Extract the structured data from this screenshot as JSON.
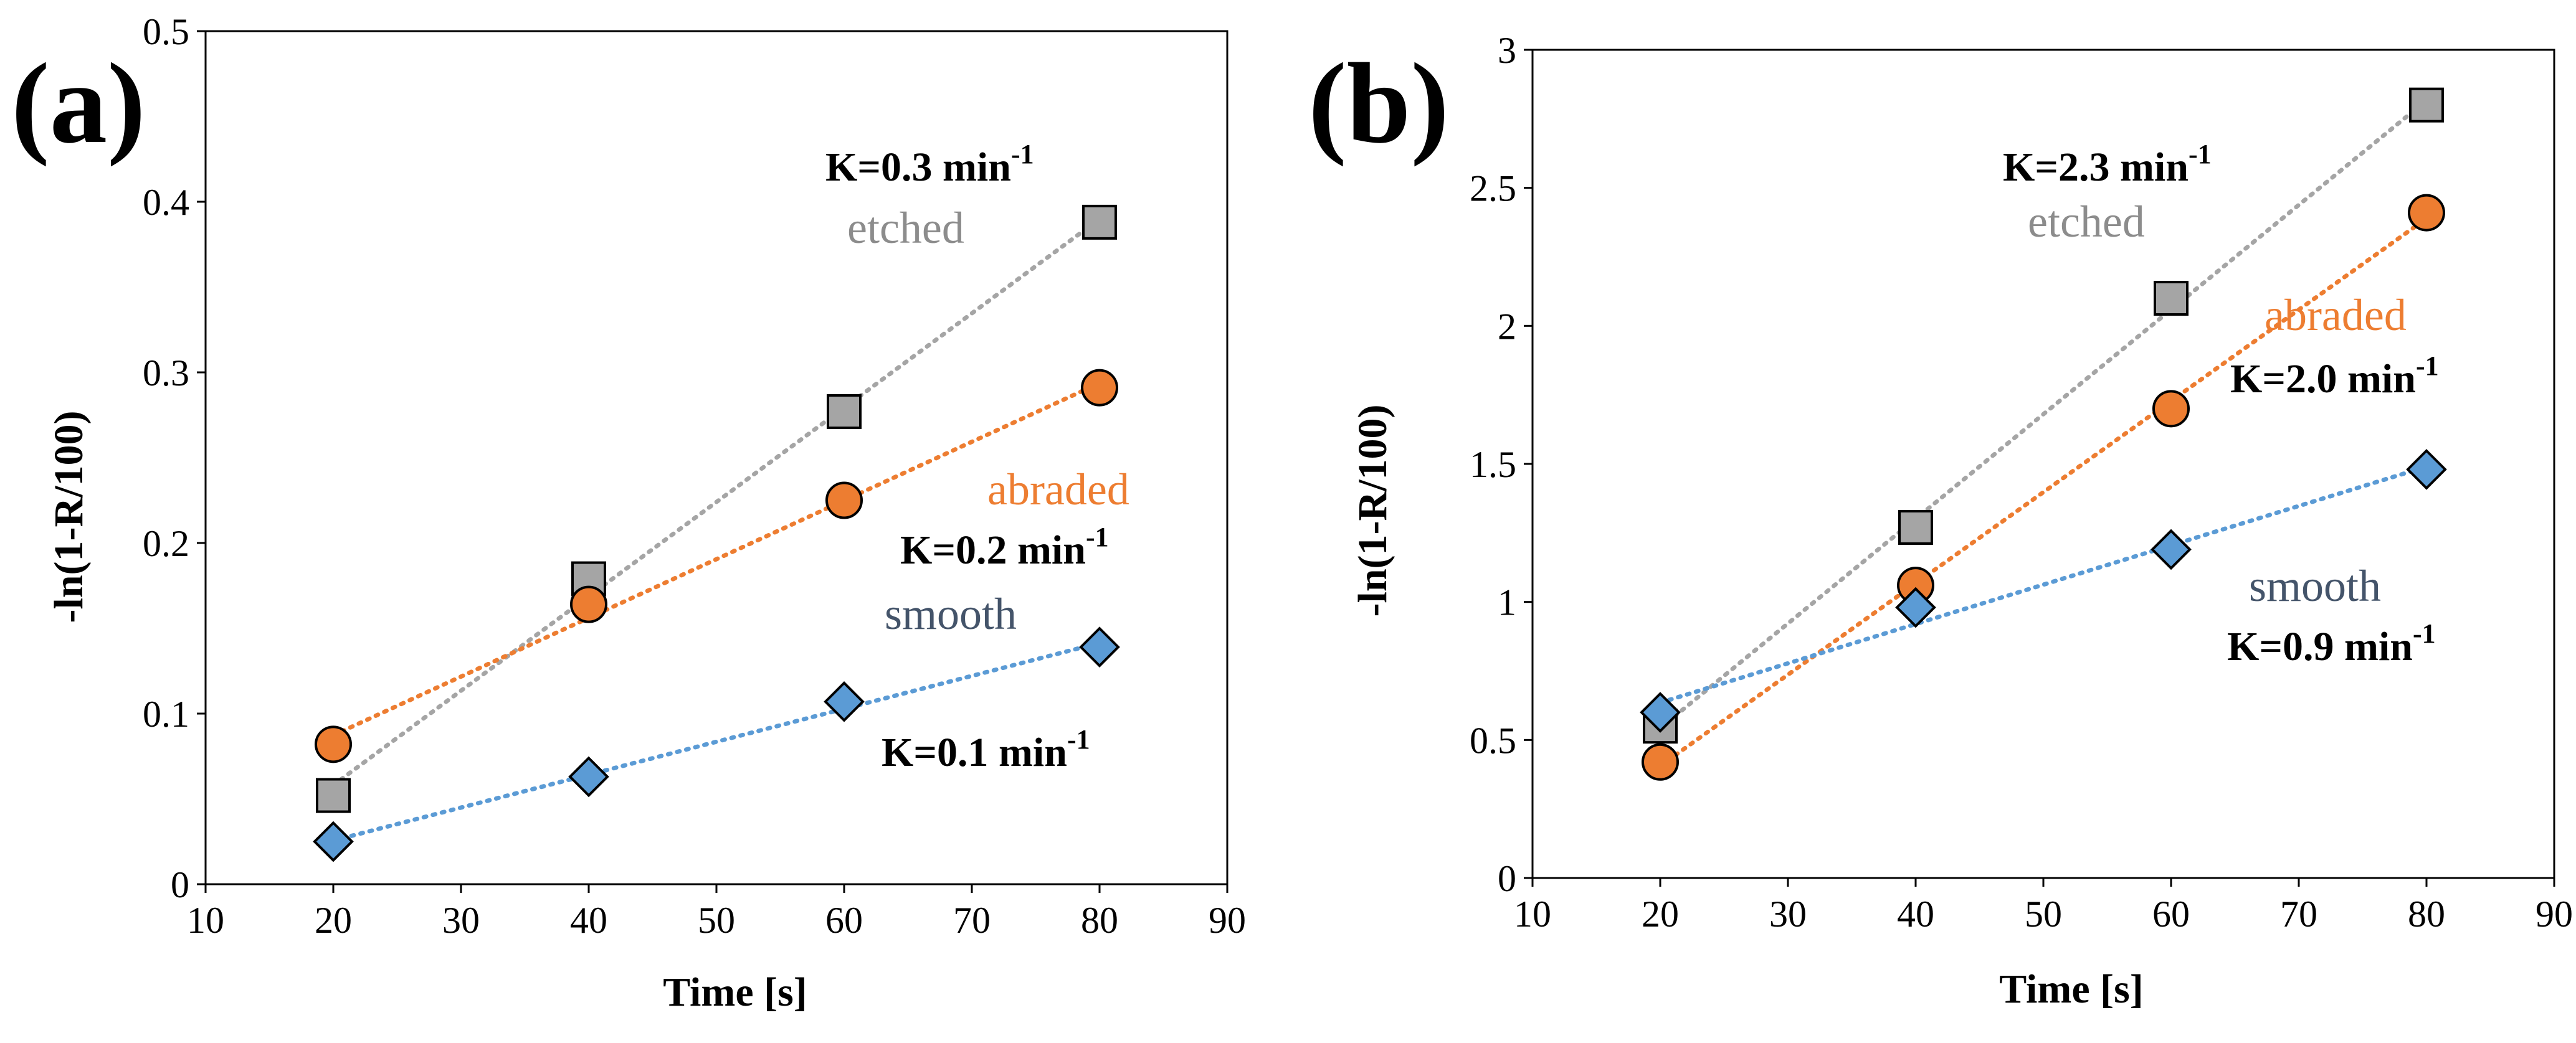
{
  "chart_data": [
    {
      "type": "scatter",
      "panel_label": "(a)",
      "xlabel": "Time [s]",
      "ylabel": "-ln(1-R/100)",
      "xlim": [
        10,
        90
      ],
      "ylim": [
        0,
        0.5
      ],
      "x_ticks": [
        "10",
        "20",
        "30",
        "40",
        "50",
        "60",
        "70",
        "80",
        "90"
      ],
      "y_ticks": [
        "0",
        "0.1",
        "0.2",
        "0.3",
        "0.4",
        "0.5"
      ],
      "x": [
        20,
        40,
        60,
        80
      ],
      "trendline": "linear (dotted)",
      "series": [
        {
          "name": "etched",
          "color": "#A5A5A5",
          "label_color": "#8C8C8C",
          "marker": "square",
          "values": [
            0.052,
            0.179,
            0.277,
            0.388
          ],
          "rate": {
            "prefix": "K=0.3 min",
            "sup": "-1"
          }
        },
        {
          "name": "abraded",
          "color": "#ED7D31",
          "label_color": "#ED7D31",
          "marker": "circle",
          "values": [
            0.082,
            0.164,
            0.225,
            0.291
          ],
          "rate": {
            "prefix": "K=0.2 min",
            "sup": "-1"
          }
        },
        {
          "name": "smooth",
          "color": "#5B9BD5",
          "label_color": "#44546A",
          "marker": "diamond",
          "values": [
            0.025,
            0.063,
            0.107,
            0.139
          ],
          "rate": {
            "prefix": "K=0.1 min",
            "sup": "-1"
          }
        }
      ]
    },
    {
      "type": "scatter",
      "panel_label": "(b)",
      "xlabel": "Time [s]",
      "ylabel": "-ln(1-R/100)",
      "xlim": [
        10,
        90
      ],
      "ylim": [
        0,
        3
      ],
      "x_ticks": [
        "10",
        "20",
        "30",
        "40",
        "50",
        "60",
        "70",
        "80",
        "90"
      ],
      "y_ticks": [
        "0",
        "0.5",
        "1",
        "1.5",
        "2",
        "2.5",
        "3"
      ],
      "x": [
        20,
        40,
        60,
        80
      ],
      "trendline": "linear (dotted)",
      "series": [
        {
          "name": "etched",
          "color": "#A5A5A5",
          "label_color": "#8C8C8C",
          "marker": "square",
          "values": [
            0.55,
            1.27,
            2.1,
            2.8
          ],
          "rate": {
            "prefix": "K=2.3 min",
            "sup": "-1"
          }
        },
        {
          "name": "abraded",
          "color": "#ED7D31",
          "label_color": "#ED7D31",
          "marker": "circle",
          "values": [
            0.42,
            1.06,
            1.7,
            2.41
          ],
          "rate": {
            "prefix": "K=2.0 min",
            "sup": "-1"
          }
        },
        {
          "name": "smooth",
          "color": "#5B9BD5",
          "label_color": "#44546A",
          "marker": "diamond",
          "values": [
            0.6,
            0.98,
            1.19,
            1.48
          ],
          "rate": {
            "prefix": "K=0.9 min",
            "sup": "-1"
          }
        }
      ]
    }
  ]
}
